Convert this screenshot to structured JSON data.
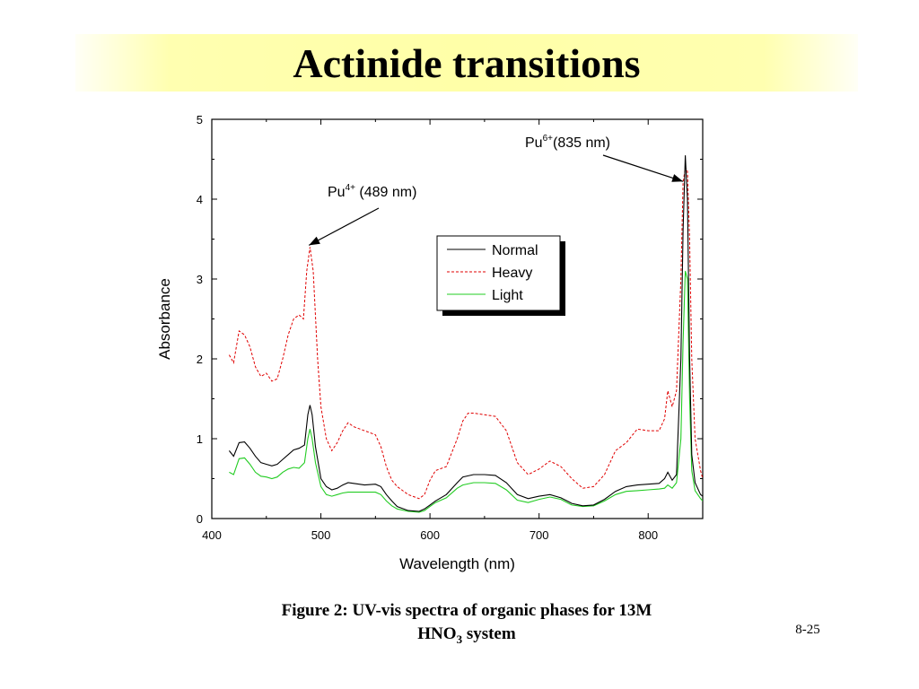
{
  "slide": {
    "title": "Actinide transitions",
    "caption_line1": "Figure 2: UV-vis spectra of organic phases for 13M",
    "caption_line2_prefix": "HNO",
    "caption_line2_sub": "3",
    "caption_line2_suffix": " system",
    "page_number": "8-25"
  },
  "chart_data": {
    "type": "line",
    "title": "",
    "xlabel": "Wavelength (nm)",
    "ylabel": "Absorbance",
    "xlim": [
      400,
      850
    ],
    "ylim": [
      0,
      5
    ],
    "xticks": [
      400,
      500,
      600,
      700,
      800
    ],
    "yticks": [
      0,
      1,
      2,
      3,
      4,
      5
    ],
    "grid": false,
    "legend_position": "upper-middle",
    "annotations": [
      {
        "base": "Pu",
        "sup": "4+",
        "text": " (489 nm)",
        "x": 489,
        "y": 3.4
      },
      {
        "base": "Pu",
        "sup": "6+",
        "text": "(835 nm)",
        "x": 832,
        "y": 4.2
      }
    ],
    "series": [
      {
        "name": "Normal",
        "color": "#000000",
        "style": "solid",
        "points": [
          [
            416,
            0.85
          ],
          [
            420,
            0.78
          ],
          [
            425,
            0.95
          ],
          [
            430,
            0.96
          ],
          [
            435,
            0.88
          ],
          [
            440,
            0.78
          ],
          [
            445,
            0.7
          ],
          [
            450,
            0.68
          ],
          [
            455,
            0.66
          ],
          [
            460,
            0.68
          ],
          [
            465,
            0.74
          ],
          [
            470,
            0.8
          ],
          [
            475,
            0.86
          ],
          [
            480,
            0.88
          ],
          [
            485,
            0.92
          ],
          [
            488,
            1.3
          ],
          [
            490,
            1.42
          ],
          [
            492,
            1.3
          ],
          [
            495,
            0.9
          ],
          [
            500,
            0.5
          ],
          [
            505,
            0.4
          ],
          [
            510,
            0.36
          ],
          [
            515,
            0.38
          ],
          [
            520,
            0.42
          ],
          [
            525,
            0.45
          ],
          [
            530,
            0.44
          ],
          [
            540,
            0.42
          ],
          [
            550,
            0.43
          ],
          [
            555,
            0.4
          ],
          [
            560,
            0.3
          ],
          [
            565,
            0.22
          ],
          [
            570,
            0.15
          ],
          [
            580,
            0.1
          ],
          [
            590,
            0.09
          ],
          [
            595,
            0.12
          ],
          [
            600,
            0.17
          ],
          [
            605,
            0.22
          ],
          [
            615,
            0.3
          ],
          [
            625,
            0.45
          ],
          [
            630,
            0.52
          ],
          [
            640,
            0.55
          ],
          [
            650,
            0.55
          ],
          [
            660,
            0.54
          ],
          [
            670,
            0.45
          ],
          [
            680,
            0.3
          ],
          [
            690,
            0.25
          ],
          [
            700,
            0.28
          ],
          [
            710,
            0.3
          ],
          [
            720,
            0.26
          ],
          [
            730,
            0.19
          ],
          [
            740,
            0.16
          ],
          [
            750,
            0.17
          ],
          [
            760,
            0.24
          ],
          [
            770,
            0.34
          ],
          [
            780,
            0.4
          ],
          [
            790,
            0.42
          ],
          [
            800,
            0.43
          ],
          [
            810,
            0.44
          ],
          [
            815,
            0.5
          ],
          [
            818,
            0.58
          ],
          [
            822,
            0.48
          ],
          [
            826,
            0.55
          ],
          [
            830,
            2.0
          ],
          [
            832,
            3.6
          ],
          [
            834,
            4.55
          ],
          [
            836,
            4.0
          ],
          [
            838,
            2.0
          ],
          [
            840,
            0.8
          ],
          [
            843,
            0.45
          ],
          [
            848,
            0.3
          ],
          [
            850,
            0.28
          ]
        ]
      },
      {
        "name": "Heavy",
        "color": "#e00000",
        "style": "dashed",
        "points": [
          [
            416,
            2.05
          ],
          [
            420,
            1.95
          ],
          [
            425,
            2.35
          ],
          [
            430,
            2.3
          ],
          [
            435,
            2.15
          ],
          [
            440,
            1.9
          ],
          [
            445,
            1.78
          ],
          [
            450,
            1.82
          ],
          [
            455,
            1.72
          ],
          [
            460,
            1.75
          ],
          [
            465,
            2.0
          ],
          [
            470,
            2.3
          ],
          [
            475,
            2.5
          ],
          [
            480,
            2.55
          ],
          [
            484,
            2.5
          ],
          [
            487,
            3.1
          ],
          [
            490,
            3.4
          ],
          [
            493,
            3.1
          ],
          [
            497,
            2.0
          ],
          [
            500,
            1.4
          ],
          [
            505,
            1.0
          ],
          [
            510,
            0.85
          ],
          [
            515,
            0.95
          ],
          [
            520,
            1.1
          ],
          [
            525,
            1.2
          ],
          [
            530,
            1.15
          ],
          [
            540,
            1.1
          ],
          [
            550,
            1.05
          ],
          [
            555,
            0.9
          ],
          [
            560,
            0.65
          ],
          [
            565,
            0.48
          ],
          [
            570,
            0.4
          ],
          [
            580,
            0.3
          ],
          [
            590,
            0.25
          ],
          [
            595,
            0.3
          ],
          [
            600,
            0.48
          ],
          [
            605,
            0.6
          ],
          [
            615,
            0.65
          ],
          [
            625,
            1.0
          ],
          [
            630,
            1.22
          ],
          [
            635,
            1.32
          ],
          [
            640,
            1.32
          ],
          [
            650,
            1.3
          ],
          [
            660,
            1.28
          ],
          [
            670,
            1.1
          ],
          [
            680,
            0.7
          ],
          [
            690,
            0.55
          ],
          [
            700,
            0.62
          ],
          [
            710,
            0.72
          ],
          [
            720,
            0.65
          ],
          [
            730,
            0.5
          ],
          [
            740,
            0.38
          ],
          [
            750,
            0.4
          ],
          [
            760,
            0.55
          ],
          [
            770,
            0.85
          ],
          [
            780,
            0.95
          ],
          [
            790,
            1.12
          ],
          [
            800,
            1.1
          ],
          [
            810,
            1.1
          ],
          [
            815,
            1.25
          ],
          [
            818,
            1.6
          ],
          [
            822,
            1.4
          ],
          [
            826,
            1.6
          ],
          [
            830,
            3.0
          ],
          [
            832,
            4.2
          ],
          [
            834,
            4.4
          ],
          [
            836,
            4.35
          ],
          [
            838,
            3.5
          ],
          [
            840,
            2.0
          ],
          [
            843,
            1.0
          ],
          [
            848,
            0.6
          ],
          [
            850,
            0.5
          ]
        ]
      },
      {
        "name": "Light",
        "color": "#22cc22",
        "style": "solid",
        "points": [
          [
            416,
            0.58
          ],
          [
            420,
            0.55
          ],
          [
            425,
            0.75
          ],
          [
            430,
            0.76
          ],
          [
            435,
            0.68
          ],
          [
            440,
            0.58
          ],
          [
            445,
            0.53
          ],
          [
            450,
            0.52
          ],
          [
            455,
            0.5
          ],
          [
            460,
            0.52
          ],
          [
            465,
            0.58
          ],
          [
            470,
            0.62
          ],
          [
            475,
            0.64
          ],
          [
            480,
            0.63
          ],
          [
            485,
            0.7
          ],
          [
            488,
            1.0
          ],
          [
            490,
            1.12
          ],
          [
            492,
            1.0
          ],
          [
            495,
            0.7
          ],
          [
            500,
            0.4
          ],
          [
            505,
            0.3
          ],
          [
            510,
            0.28
          ],
          [
            515,
            0.3
          ],
          [
            520,
            0.32
          ],
          [
            525,
            0.33
          ],
          [
            530,
            0.33
          ],
          [
            540,
            0.33
          ],
          [
            550,
            0.33
          ],
          [
            555,
            0.3
          ],
          [
            560,
            0.22
          ],
          [
            565,
            0.16
          ],
          [
            570,
            0.12
          ],
          [
            580,
            0.09
          ],
          [
            590,
            0.08
          ],
          [
            595,
            0.1
          ],
          [
            600,
            0.15
          ],
          [
            605,
            0.2
          ],
          [
            615,
            0.26
          ],
          [
            625,
            0.38
          ],
          [
            630,
            0.42
          ],
          [
            640,
            0.45
          ],
          [
            650,
            0.45
          ],
          [
            660,
            0.44
          ],
          [
            670,
            0.36
          ],
          [
            680,
            0.23
          ],
          [
            690,
            0.2
          ],
          [
            700,
            0.24
          ],
          [
            710,
            0.27
          ],
          [
            720,
            0.24
          ],
          [
            730,
            0.17
          ],
          [
            740,
            0.15
          ],
          [
            750,
            0.16
          ],
          [
            760,
            0.22
          ],
          [
            770,
            0.3
          ],
          [
            780,
            0.34
          ],
          [
            790,
            0.35
          ],
          [
            800,
            0.36
          ],
          [
            810,
            0.37
          ],
          [
            815,
            0.38
          ],
          [
            818,
            0.42
          ],
          [
            822,
            0.38
          ],
          [
            826,
            0.45
          ],
          [
            830,
            1.0
          ],
          [
            832,
            2.2
          ],
          [
            834,
            3.1
          ],
          [
            836,
            3.0
          ],
          [
            838,
            1.5
          ],
          [
            840,
            0.6
          ],
          [
            843,
            0.35
          ],
          [
            848,
            0.25
          ],
          [
            850,
            0.22
          ]
        ]
      }
    ]
  }
}
